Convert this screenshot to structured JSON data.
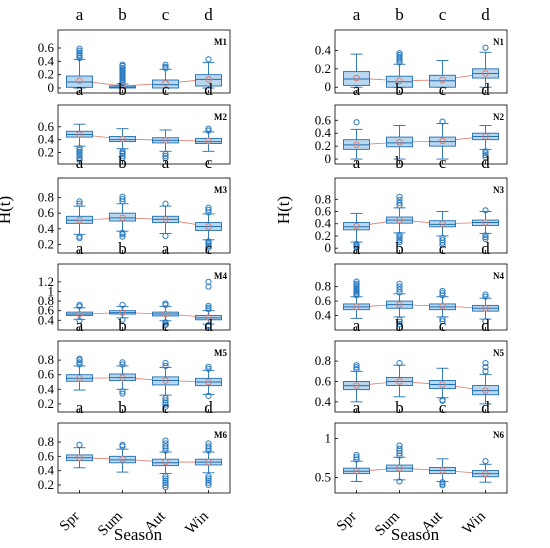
{
  "figure": {
    "xlabel": "Season",
    "ylabel": "H(t)",
    "seasons": [
      "Spr",
      "Sum",
      "Aut",
      "Win"
    ]
  },
  "colors": {
    "box_fill": "#b9d7ee",
    "box_edge": "#1f6fb3",
    "outlier": "#2b7bc0",
    "median": "#1f6fb3",
    "mean_marker": "#e07a6a",
    "mean_line": "#e07a6a",
    "axis": "#000000"
  },
  "chart_data": [
    {
      "type": "box",
      "panel": "M1",
      "column": "left",
      "letters": [
        "a",
        "b",
        "c",
        "d"
      ],
      "yticks": [
        "0",
        "0.2",
        "0.4",
        "0.6"
      ],
      "ylim": [
        -0.03,
        0.66
      ],
      "boxes": [
        {
          "season": "Spr",
          "q1": 0.01,
          "median": 0.09,
          "q3": 0.18,
          "whisker_low": 0.0,
          "whisker_high": 0.43,
          "mean": 0.11,
          "outliers": [
            0.45,
            0.48,
            0.5,
            0.53,
            0.56,
            0.59
          ]
        },
        {
          "season": "Sum",
          "q1": 0.0,
          "median": 0.01,
          "q3": 0.03,
          "whisker_low": 0.0,
          "whisker_high": 0.06,
          "mean": 0.03,
          "outliers": [
            0.08,
            0.1,
            0.12,
            0.14,
            0.16,
            0.18,
            0.2,
            0.22,
            0.24,
            0.26,
            0.28,
            0.3,
            0.33,
            0.35
          ]
        },
        {
          "season": "Aut",
          "q1": 0.0,
          "median": 0.05,
          "q3": 0.12,
          "whisker_low": 0.0,
          "whisker_high": 0.28,
          "mean": 0.07,
          "outliers": [
            0.3,
            0.32,
            0.35
          ]
        },
        {
          "season": "Win",
          "q1": 0.03,
          "median": 0.13,
          "q3": 0.2,
          "whisker_low": 0.0,
          "whisker_high": 0.38,
          "mean": 0.13,
          "outliers": [
            0.43
          ]
        }
      ]
    },
    {
      "type": "box",
      "panel": "N1",
      "column": "right",
      "letters": [
        "a",
        "b",
        "c",
        "d"
      ],
      "yticks": [
        "0",
        "0.2",
        "0.4"
      ],
      "ylim": [
        -0.03,
        0.47
      ],
      "boxes": [
        {
          "season": "Spr",
          "q1": 0.02,
          "median": 0.09,
          "q3": 0.17,
          "whisker_low": 0.0,
          "whisker_high": 0.36,
          "mean": 0.1,
          "outliers": []
        },
        {
          "season": "Sum",
          "q1": 0.0,
          "median": 0.06,
          "q3": 0.12,
          "whisker_low": 0.0,
          "whisker_high": 0.25,
          "mean": 0.07,
          "outliers": [
            0.27,
            0.29,
            0.31,
            0.33,
            0.35,
            0.37
          ]
        },
        {
          "season": "Aut",
          "q1": 0.0,
          "median": 0.07,
          "q3": 0.13,
          "whisker_low": 0.0,
          "whisker_high": 0.29,
          "mean": 0.08,
          "outliers": []
        },
        {
          "season": "Win",
          "q1": 0.1,
          "median": 0.15,
          "q3": 0.2,
          "whisker_low": 0.0,
          "whisker_high": 0.38,
          "mean": 0.15,
          "outliers": [
            0.43
          ]
        }
      ]
    },
    {
      "type": "box",
      "panel": "M2",
      "column": "left",
      "letters": [
        "a",
        "b",
        "c",
        "d"
      ],
      "yticks": [
        "0.2",
        "0.4",
        "0.6"
      ],
      "ylim": [
        0.07,
        0.72
      ],
      "boxes": [
        {
          "season": "Spr",
          "q1": 0.44,
          "median": 0.48,
          "q3": 0.53,
          "whisker_low": 0.3,
          "whisker_high": 0.64,
          "mean": 0.48,
          "outliers": [
            0.09,
            0.12,
            0.15,
            0.18,
            0.21,
            0.24,
            0.27
          ]
        },
        {
          "season": "Sum",
          "q1": 0.37,
          "median": 0.4,
          "q3": 0.45,
          "whisker_low": 0.26,
          "whisker_high": 0.57,
          "mean": 0.41,
          "outliers": [
            0.12,
            0.15,
            0.18,
            0.2,
            0.22
          ]
        },
        {
          "season": "Aut",
          "q1": 0.35,
          "median": 0.39,
          "q3": 0.43,
          "whisker_low": 0.22,
          "whisker_high": 0.55,
          "mean": 0.39,
          "outliers": [
            0.12,
            0.15,
            0.18
          ]
        },
        {
          "season": "Win",
          "q1": 0.34,
          "median": 0.37,
          "q3": 0.42,
          "whisker_low": 0.22,
          "whisker_high": 0.52,
          "mean": 0.38,
          "outliers": [
            0.54,
            0.57
          ]
        }
      ]
    },
    {
      "type": "box",
      "panel": "N2",
      "column": "right",
      "letters": [
        "a",
        "b",
        "c",
        "d"
      ],
      "yticks": [
        "0",
        "0.2",
        "0.4",
        "0.6"
      ],
      "ylim": [
        -0.03,
        0.62
      ],
      "boxes": [
        {
          "season": "Spr",
          "q1": 0.15,
          "median": 0.22,
          "q3": 0.3,
          "whisker_low": 0.0,
          "whisker_high": 0.46,
          "mean": 0.22,
          "outliers": [
            0.57
          ]
        },
        {
          "season": "Sum",
          "q1": 0.19,
          "median": 0.25,
          "q3": 0.34,
          "whisker_low": 0.0,
          "whisker_high": 0.52,
          "mean": 0.26,
          "outliers": []
        },
        {
          "season": "Aut",
          "q1": 0.2,
          "median": 0.27,
          "q3": 0.34,
          "whisker_low": 0.0,
          "whisker_high": 0.55,
          "mean": 0.28,
          "outliers": [
            0.58
          ]
        },
        {
          "season": "Win",
          "q1": 0.3,
          "median": 0.35,
          "q3": 0.4,
          "whisker_low": 0.15,
          "whisker_high": 0.52,
          "mean": 0.35,
          "outliers": [
            0.03,
            0.06,
            0.09,
            0.12
          ]
        }
      ]
    },
    {
      "type": "box",
      "panel": "M3",
      "column": "left",
      "letters": [
        "a",
        "b",
        "a",
        "c"
      ],
      "yticks": [
        "0.2",
        "0.4",
        "0.6",
        "0.8"
      ],
      "ylim": [
        0.13,
        0.87
      ],
      "boxes": [
        {
          "season": "Spr",
          "q1": 0.47,
          "median": 0.51,
          "q3": 0.56,
          "whisker_low": 0.33,
          "whisker_high": 0.69,
          "mean": 0.51,
          "outliers": [
            0.28,
            0.3,
            0.72,
            0.75
          ]
        },
        {
          "season": "Sum",
          "q1": 0.5,
          "median": 0.54,
          "q3": 0.6,
          "whisker_low": 0.37,
          "whisker_high": 0.72,
          "mean": 0.54,
          "outliers": [
            0.3,
            0.33,
            0.35,
            0.75,
            0.78,
            0.81
          ]
        },
        {
          "season": "Aut",
          "q1": 0.48,
          "median": 0.52,
          "q3": 0.56,
          "whisker_low": 0.34,
          "whisker_high": 0.69,
          "mean": 0.52,
          "outliers": [
            0.31,
            0.72
          ]
        },
        {
          "season": "Win",
          "q1": 0.38,
          "median": 0.43,
          "q3": 0.48,
          "whisker_low": 0.26,
          "whisker_high": 0.59,
          "mean": 0.43,
          "outliers": [
            0.16,
            0.18,
            0.2,
            0.22,
            0.24,
            0.61,
            0.64,
            0.67
          ]
        }
      ]
    },
    {
      "type": "box",
      "panel": "N3",
      "column": "right",
      "letters": [
        "a",
        "b",
        "c",
        "d"
      ],
      "yticks": [
        "0",
        "0.2",
        "0.4",
        "0.6",
        "0.8"
      ],
      "ylim": [
        -0.03,
        0.92
      ],
      "boxes": [
        {
          "season": "Spr",
          "q1": 0.3,
          "median": 0.35,
          "q3": 0.42,
          "whisker_low": 0.1,
          "whisker_high": 0.57,
          "mean": 0.36,
          "outliers": [
            0.01,
            0.03,
            0.05,
            0.07
          ]
        },
        {
          "season": "Sum",
          "q1": 0.41,
          "median": 0.46,
          "q3": 0.51,
          "whisker_low": 0.25,
          "whisker_high": 0.66,
          "mean": 0.46,
          "outliers": [
            0.1,
            0.13,
            0.16,
            0.19,
            0.22,
            0.7,
            0.74,
            0.79,
            0.84
          ]
        },
        {
          "season": "Aut",
          "q1": 0.35,
          "median": 0.39,
          "q3": 0.45,
          "whisker_low": 0.2,
          "whisker_high": 0.6,
          "mean": 0.4,
          "outliers": [
            0.05,
            0.09,
            0.13,
            0.17
          ]
        },
        {
          "season": "Win",
          "q1": 0.37,
          "median": 0.42,
          "q3": 0.46,
          "whisker_low": 0.24,
          "whisker_high": 0.6,
          "mean": 0.42,
          "outliers": [
            0.15,
            0.18,
            0.21,
            0.62
          ]
        }
      ]
    },
    {
      "type": "box",
      "panel": "M4",
      "column": "left",
      "letters": [
        "a",
        "b",
        "a",
        "c"
      ],
      "yticks": [
        "0.4",
        "0.6",
        "0.8",
        "1",
        "1.2"
      ],
      "ylim": [
        0.26,
        1.28
      ],
      "boxes": [
        {
          "season": "Spr",
          "q1": 0.5,
          "median": 0.53,
          "q3": 0.57,
          "whisker_low": 0.42,
          "whisker_high": 0.66,
          "mean": 0.53,
          "outliers": [
            0.39,
            0.69,
            0.72
          ]
        },
        {
          "season": "Sum",
          "q1": 0.53,
          "median": 0.56,
          "q3": 0.6,
          "whisker_low": 0.45,
          "whisker_high": 0.69,
          "mean": 0.56,
          "outliers": [
            0.41,
            0.72
          ]
        },
        {
          "season": "Aut",
          "q1": 0.49,
          "median": 0.53,
          "q3": 0.57,
          "whisker_low": 0.39,
          "whisker_high": 0.69,
          "mean": 0.53,
          "outliers": [
            0.3,
            0.33,
            0.36,
            0.72,
            0.75
          ]
        },
        {
          "season": "Win",
          "q1": 0.41,
          "median": 0.45,
          "q3": 0.5,
          "whisker_low": 0.32,
          "whisker_high": 0.6,
          "mean": 0.46,
          "outliers": [
            0.28,
            0.3,
            0.63,
            0.66,
            0.7,
            1.1,
            1.2
          ]
        }
      ]
    },
    {
      "type": "box",
      "panel": "N4",
      "column": "right",
      "letters": [
        "a",
        "b",
        "c",
        "d"
      ],
      "yticks": [
        "0.4",
        "0.6",
        "0.8"
      ],
      "ylim": [
        0.24,
        0.92
      ],
      "boxes": [
        {
          "season": "Spr",
          "q1": 0.48,
          "median": 0.52,
          "q3": 0.56,
          "whisker_low": 0.36,
          "whisker_high": 0.66,
          "mean": 0.52,
          "outliers": [
            0.68,
            0.7,
            0.72,
            0.74,
            0.76,
            0.78,
            0.8,
            0.82,
            0.84,
            0.87
          ]
        },
        {
          "season": "Sum",
          "q1": 0.5,
          "median": 0.55,
          "q3": 0.6,
          "whisker_low": 0.38,
          "whisker_high": 0.7,
          "mean": 0.55,
          "outliers": [
            0.28,
            0.31,
            0.34,
            0.72,
            0.76,
            0.8,
            0.84
          ]
        },
        {
          "season": "Aut",
          "q1": 0.48,
          "median": 0.52,
          "q3": 0.56,
          "whisker_low": 0.38,
          "whisker_high": 0.66,
          "mean": 0.53,
          "outliers": [
            0.32,
            0.35,
            0.68,
            0.71,
            0.74
          ]
        },
        {
          "season": "Win",
          "q1": 0.46,
          "median": 0.5,
          "q3": 0.54,
          "whisker_low": 0.35,
          "whisker_high": 0.64,
          "mean": 0.5,
          "outliers": [
            0.32,
            0.66,
            0.69
          ]
        }
      ]
    },
    {
      "type": "box",
      "panel": "M5",
      "column": "left",
      "letters": [
        "a",
        "b",
        "c",
        "d"
      ],
      "yticks": [
        "0.2",
        "0.4",
        "0.6",
        "0.8"
      ],
      "ylim": [
        0.13,
        0.87
      ],
      "boxes": [
        {
          "season": "Spr",
          "q1": 0.51,
          "median": 0.55,
          "q3": 0.6,
          "whisker_low": 0.39,
          "whisker_high": 0.72,
          "mean": 0.55,
          "outliers": [
            0.74,
            0.77,
            0.8,
            0.82
          ]
        },
        {
          "season": "Sum",
          "q1": 0.52,
          "median": 0.56,
          "q3": 0.61,
          "whisker_low": 0.4,
          "whisker_high": 0.72,
          "mean": 0.56,
          "outliers": [
            0.34,
            0.37,
            0.74,
            0.77
          ]
        },
        {
          "season": "Aut",
          "q1": 0.46,
          "median": 0.52,
          "q3": 0.57,
          "whisker_low": 0.32,
          "whisker_high": 0.7,
          "mean": 0.52,
          "outliers": [
            0.16,
            0.19,
            0.22,
            0.25,
            0.28,
            0.72,
            0.76
          ]
        },
        {
          "season": "Win",
          "q1": 0.45,
          "median": 0.5,
          "q3": 0.55,
          "whisker_low": 0.33,
          "whisker_high": 0.66,
          "mean": 0.5,
          "outliers": [
            0.31,
            0.68,
            0.71
          ]
        }
      ]
    },
    {
      "type": "box",
      "panel": "N5",
      "column": "right",
      "letters": [
        "a",
        "b",
        "c",
        "d"
      ],
      "yticks": [
        "0.4",
        "0.6",
        "0.8"
      ],
      "ylim": [
        0.33,
        0.86
      ],
      "boxes": [
        {
          "season": "Spr",
          "q1": 0.52,
          "median": 0.56,
          "q3": 0.6,
          "whisker_low": 0.4,
          "whisker_high": 0.7,
          "mean": 0.56,
          "outliers": [
            0.72,
            0.74,
            0.76
          ]
        },
        {
          "season": "Sum",
          "q1": 0.56,
          "median": 0.6,
          "q3": 0.64,
          "whisker_low": 0.45,
          "whisker_high": 0.76,
          "mean": 0.6,
          "outliers": [
            0.78
          ]
        },
        {
          "season": "Aut",
          "q1": 0.53,
          "median": 0.57,
          "q3": 0.61,
          "whisker_low": 0.44,
          "whisker_high": 0.73,
          "mean": 0.57,
          "outliers": [
            0.41,
            0.42
          ]
        },
        {
          "season": "Win",
          "q1": 0.47,
          "median": 0.51,
          "q3": 0.56,
          "whisker_low": 0.38,
          "whisker_high": 0.67,
          "mean": 0.51,
          "outliers": [
            0.7,
            0.74,
            0.78
          ]
        }
      ]
    },
    {
      "type": "box",
      "panel": "M6",
      "column": "left",
      "letters": [
        "a",
        "b",
        "c",
        "d"
      ],
      "yticks": [
        "0.2",
        "0.4",
        "0.6",
        "0.8"
      ],
      "ylim": [
        0.13,
        0.87
      ],
      "boxes": [
        {
          "season": "Spr",
          "q1": 0.54,
          "median": 0.58,
          "q3": 0.62,
          "whisker_low": 0.44,
          "whisker_high": 0.72,
          "mean": 0.58,
          "outliers": [
            0.76
          ]
        },
        {
          "season": "Sum",
          "q1": 0.51,
          "median": 0.55,
          "q3": 0.6,
          "whisker_low": 0.38,
          "whisker_high": 0.7,
          "mean": 0.56,
          "outliers": [
            0.74,
            0.76
          ]
        },
        {
          "season": "Aut",
          "q1": 0.47,
          "median": 0.51,
          "q3": 0.56,
          "whisker_low": 0.36,
          "whisker_high": 0.66,
          "mean": 0.52,
          "outliers": [
            0.17,
            0.2,
            0.23,
            0.26,
            0.29,
            0.32,
            0.68,
            0.71,
            0.74,
            0.78,
            0.82
          ]
        },
        {
          "season": "Win",
          "q1": 0.48,
          "median": 0.52,
          "q3": 0.56,
          "whisker_low": 0.37,
          "whisker_high": 0.66,
          "mean": 0.52,
          "outliers": [
            0.2,
            0.23,
            0.26,
            0.29,
            0.32,
            0.68,
            0.71,
            0.74,
            0.78
          ]
        }
      ]
    },
    {
      "type": "box",
      "panel": "N6",
      "column": "right",
      "letters": [
        "a",
        "b",
        "c",
        "d"
      ],
      "yticks": [
        "0.5",
        "1"
      ],
      "ylim": [
        0.34,
        1.02
      ],
      "boxes": [
        {
          "season": "Spr",
          "q1": 0.55,
          "median": 0.58,
          "q3": 0.62,
          "whisker_low": 0.45,
          "whisker_high": 0.71,
          "mean": 0.58,
          "outliers": [
            0.73,
            0.76,
            0.79
          ]
        },
        {
          "season": "Sum",
          "q1": 0.58,
          "median": 0.62,
          "q3": 0.66,
          "whisker_low": 0.47,
          "whisker_high": 0.76,
          "mean": 0.62,
          "outliers": [
            0.45,
            0.78,
            0.81,
            0.84,
            0.87,
            0.91
          ]
        },
        {
          "season": "Aut",
          "q1": 0.55,
          "median": 0.59,
          "q3": 0.63,
          "whisker_low": 0.45,
          "whisker_high": 0.74,
          "mean": 0.59,
          "outliers": [
            0.4,
            0.42,
            0.44
          ]
        },
        {
          "season": "Win",
          "q1": 0.51,
          "median": 0.55,
          "q3": 0.59,
          "whisker_low": 0.44,
          "whisker_high": 0.67,
          "mean": 0.55,
          "outliers": [
            0.71
          ]
        }
      ]
    }
  ]
}
